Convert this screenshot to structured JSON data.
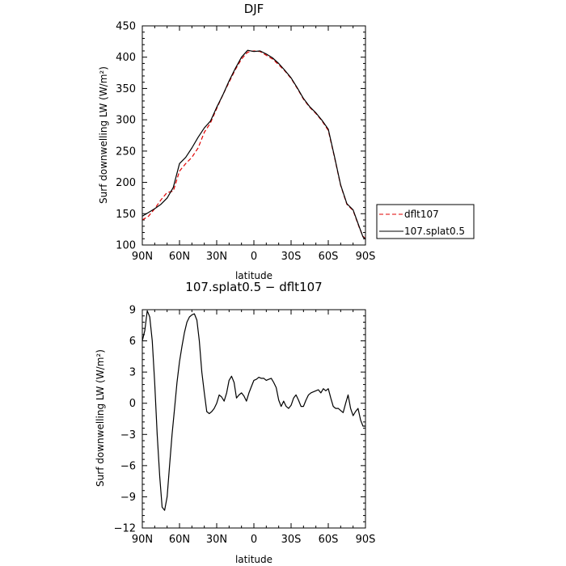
{
  "chart_data": [
    {
      "type": "line",
      "title": "DJF",
      "xlabel": "latitude",
      "ylabel": "Surf downwelling LW (W/m²)",
      "xlim": [
        90,
        -90
      ],
      "ylim": [
        100,
        450
      ],
      "x_ticks": [
        90,
        60,
        30,
        0,
        -30,
        -60,
        -90
      ],
      "x_tick_labels": [
        "90N",
        "60N",
        "30N",
        "0",
        "30S",
        "60S",
        "90S"
      ],
      "y_ticks": [
        100,
        150,
        200,
        250,
        300,
        350,
        400,
        450
      ],
      "y_tick_labels": [
        "100",
        "150",
        "200",
        "250",
        "300",
        "350",
        "400",
        "450"
      ],
      "grid": false,
      "legend_position": "outside-right",
      "series": [
        {
          "name": "dflt107",
          "color": "#e00000",
          "dash": "dashed",
          "x": [
            90,
            85,
            80,
            75,
            70,
            65,
            60,
            55,
            50,
            45,
            40,
            35,
            30,
            25,
            20,
            15,
            10,
            5,
            0,
            -5,
            -10,
            -15,
            -20,
            -25,
            -30,
            -35,
            -40,
            -45,
            -50,
            -55,
            -60,
            -65,
            -70,
            -75,
            -80,
            -85,
            -88,
            -90
          ],
          "y": [
            140,
            146,
            158,
            172,
            184,
            186,
            218,
            230,
            240,
            255,
            280,
            295,
            318,
            340,
            360,
            380,
            397,
            408,
            410,
            409,
            403,
            397,
            388,
            378,
            366,
            350,
            333,
            320,
            310,
            298,
            283,
            240,
            195,
            165,
            155,
            128,
            114,
            110
          ]
        },
        {
          "name": "107.splat0.5",
          "color": "#000000",
          "dash": "solid",
          "x": [
            90,
            85,
            80,
            75,
            70,
            65,
            60,
            55,
            50,
            45,
            40,
            35,
            30,
            25,
            20,
            15,
            10,
            5,
            0,
            -5,
            -10,
            -15,
            -20,
            -25,
            -30,
            -35,
            -40,
            -45,
            -50,
            -55,
            -60,
            -65,
            -70,
            -75,
            -80,
            -85,
            -88,
            -90
          ],
          "y": [
            146,
            152,
            158,
            165,
            175,
            192,
            230,
            240,
            255,
            272,
            287,
            298,
            320,
            340,
            362,
            382,
            400,
            411,
            409,
            410,
            405,
            399,
            390,
            379,
            367,
            351,
            334,
            321,
            311,
            299,
            285,
            241,
            196,
            166,
            156,
            129,
            113,
            109
          ]
        }
      ]
    },
    {
      "type": "line",
      "title": "107.splat0.5 − dflt107",
      "xlabel": "latitude",
      "ylabel": "Surf downwelling LW (W/m²)",
      "xlim": [
        90,
        -90
      ],
      "ylim": [
        -12,
        9
      ],
      "x_ticks": [
        90,
        60,
        30,
        0,
        -30,
        -60,
        -90
      ],
      "x_tick_labels": [
        "90N",
        "60N",
        "30N",
        "0",
        "30S",
        "60S",
        "90S"
      ],
      "y_ticks": [
        -12,
        -9,
        -6,
        -3,
        0,
        3,
        6,
        9
      ],
      "y_tick_labels": [
        "−12",
        "−9",
        "−6",
        "−3",
        "0",
        "3",
        "6",
        "9"
      ],
      "grid": false,
      "series": [
        {
          "color": "#000000",
          "dash": "solid",
          "x": [
            90,
            88,
            86,
            84,
            82,
            80,
            78,
            76,
            74,
            72,
            70,
            68,
            66,
            64,
            62,
            60,
            58,
            56,
            54,
            52,
            50,
            48,
            46,
            44,
            42,
            40,
            38,
            36,
            34,
            32,
            30,
            28,
            26,
            24,
            22,
            20,
            18,
            16,
            14,
            12,
            10,
            8,
            6,
            4,
            2,
            0,
            -2,
            -4,
            -6,
            -8,
            -10,
            -12,
            -14,
            -16,
            -18,
            -20,
            -22,
            -24,
            -26,
            -28,
            -30,
            -32,
            -34,
            -36,
            -38,
            -40,
            -42,
            -44,
            -46,
            -48,
            -50,
            -52,
            -54,
            -56,
            -58,
            -60,
            -62,
            -64,
            -66,
            -68,
            -70,
            -72,
            -74,
            -76,
            -78,
            -80,
            -82,
            -84,
            -86,
            -88,
            -90
          ],
          "y": [
            6.0,
            7.0,
            8.9,
            8.3,
            6.0,
            2.0,
            -3.0,
            -7.0,
            -10.0,
            -10.3,
            -9.0,
            -6.0,
            -3.0,
            -0.5,
            2.0,
            4.0,
            5.5,
            6.8,
            7.8,
            8.3,
            8.5,
            8.6,
            8.0,
            6.0,
            3.0,
            1.0,
            -0.8,
            -1.0,
            -0.8,
            -0.5,
            0.0,
            0.8,
            0.6,
            0.2,
            1.0,
            2.2,
            2.6,
            2.0,
            0.5,
            0.8,
            1.0,
            0.7,
            0.2,
            1.0,
            1.6,
            2.2,
            2.3,
            2.5,
            2.4,
            2.4,
            2.2,
            2.3,
            2.4,
            2.0,
            1.5,
            0.3,
            -0.3,
            0.2,
            -0.3,
            -0.5,
            -0.2,
            0.5,
            0.8,
            0.3,
            -0.3,
            -0.3,
            0.3,
            0.8,
            1.0,
            1.1,
            1.2,
            1.3,
            1.0,
            1.4,
            1.2,
            1.4,
            0.5,
            -0.3,
            -0.5,
            -0.5,
            -0.7,
            -0.9,
            0.0,
            0.8,
            -0.5,
            -1.2,
            -0.8,
            -0.5,
            -1.6,
            -2.2,
            -2.2
          ]
        }
      ]
    }
  ]
}
